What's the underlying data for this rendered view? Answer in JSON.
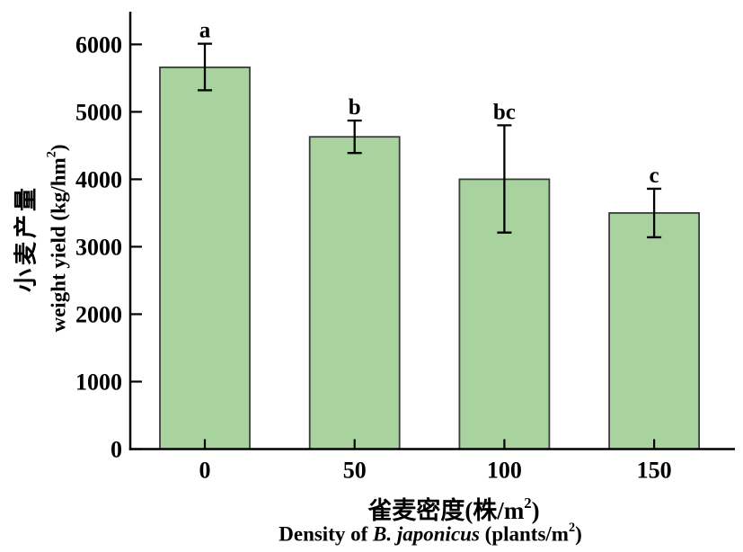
{
  "chart_data": {
    "type": "bar",
    "title": "",
    "categories": [
      "0",
      "50",
      "100",
      "150"
    ],
    "values": [
      5660,
      4630,
      4000,
      3500
    ],
    "error_up": [
      350,
      240,
      800,
      360
    ],
    "error_down": [
      340,
      240,
      790,
      360
    ],
    "sig_letters": [
      "a",
      "b",
      "bc",
      "c"
    ],
    "yticks": [
      0,
      1000,
      2000,
      3000,
      4000,
      5000,
      6000
    ],
    "ylim": [
      0,
      6485
    ],
    "grid": false,
    "legend": "none",
    "bar_fill": "#a9d39e",
    "bar_edge": "#3c3c3c",
    "axis_color": "#000000",
    "ylabel_cn": "小麦产量",
    "ylabel_en": {
      "prefix": "weight yield (kg/hm",
      "sup": "2",
      "suffix": ")"
    },
    "xlabel_cn": {
      "prefix": "雀麦密度(株/m",
      "sup": "2",
      "suffix": ")"
    },
    "xlabel_en": {
      "part1": "Density of ",
      "italic": "B. japonicus",
      "part2": " (plants/m",
      "sup": "2",
      "part3": ")"
    }
  }
}
